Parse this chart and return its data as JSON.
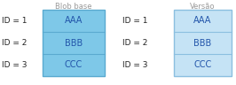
{
  "title_left": "Blob base",
  "title_right": "Versão",
  "ids": [
    "ID = 1",
    "ID = 2",
    "ID = 3"
  ],
  "blocks": [
    "AAA",
    "BBB",
    "CCC"
  ],
  "left_box_color": "#7ec8e8",
  "left_box_edge": "#5aaad0",
  "right_box_color": "#c5e3f5",
  "right_box_edge": "#8bbfe0",
  "title_color": "#999999",
  "id_color": "#222222",
  "text_color": "#2255aa",
  "bg_color": "#ffffff",
  "fig_width": 2.66,
  "fig_height": 0.96,
  "dpi": 100
}
